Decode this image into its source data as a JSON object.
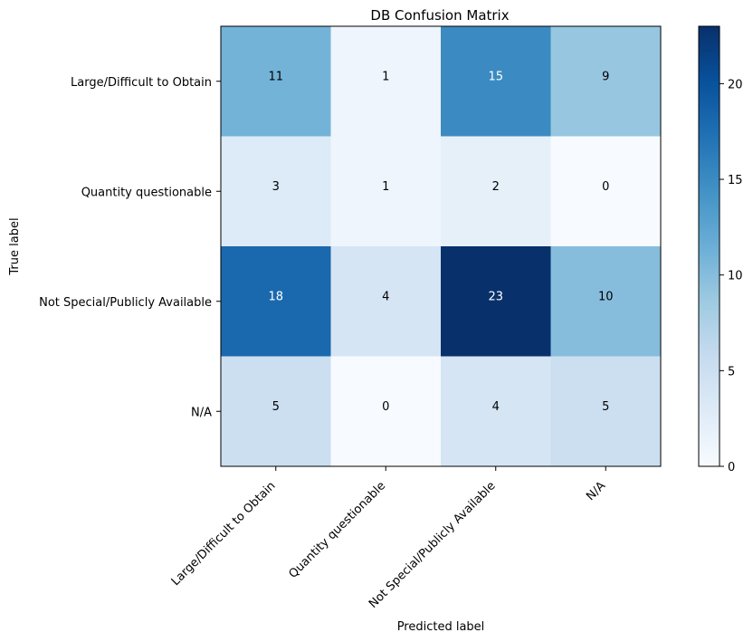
{
  "chart_data": {
    "type": "heatmap",
    "title": "DB Confusion Matrix",
    "xlabel": "Predicted label",
    "ylabel": "True label",
    "row_labels": [
      "Large/Difficult to Obtain",
      "Quantity questionable",
      "Not Special/Publicly Available",
      "N/A"
    ],
    "col_labels": [
      "Large/Difficult to Obtain",
      "Quantity questionable",
      "Not Special/Publicly Available",
      "N/A"
    ],
    "values": [
      [
        11,
        1,
        15,
        9
      ],
      [
        3,
        1,
        2,
        0
      ],
      [
        18,
        4,
        23,
        10
      ],
      [
        5,
        0,
        4,
        5
      ]
    ],
    "colormap": "Blues",
    "color_range": [
      0,
      23
    ],
    "colorbar_ticks": [
      0,
      5,
      10,
      15,
      20
    ],
    "text_colors": {
      "dark": "#000000",
      "light": "#ffffff"
    }
  }
}
